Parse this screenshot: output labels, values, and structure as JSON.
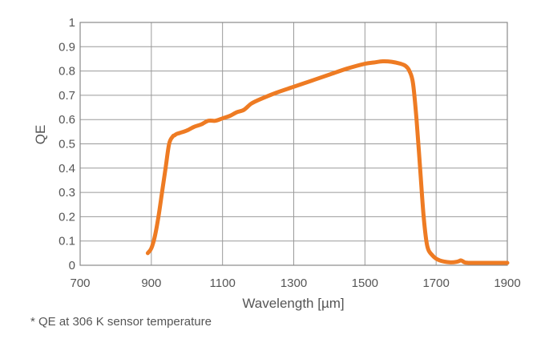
{
  "chart_data": {
    "type": "line",
    "xlabel": "Wavelength [µm]",
    "ylabel": "QE",
    "xlim": [
      700,
      1900
    ],
    "ylim": [
      0,
      1
    ],
    "x_ticks": [
      700,
      900,
      1100,
      1300,
      1500,
      1700,
      1900
    ],
    "y_ticks": [
      0,
      0.1,
      0.2,
      0.3,
      0.4,
      0.5,
      0.6,
      0.7,
      0.8,
      0.9,
      1
    ],
    "y_tick_labels": [
      "0",
      "0.1",
      "0.2",
      "0.3",
      "0.4",
      "0.5",
      "0.6",
      "0.7",
      "0.8",
      "0.9",
      "1"
    ],
    "grid": true,
    "series": [
      {
        "color": "#EE7B23",
        "x": [
          890,
          900,
          910,
          920,
          930,
          940,
          950,
          960,
          965,
          970,
          980,
          1000,
          1020,
          1040,
          1060,
          1080,
          1100,
          1120,
          1140,
          1160,
          1180,
          1200,
          1250,
          1300,
          1350,
          1400,
          1450,
          1500,
          1525,
          1550,
          1575,
          1600,
          1615,
          1625,
          1635,
          1645,
          1655,
          1665,
          1675,
          1690,
          1710,
          1740,
          1760,
          1770,
          1780,
          1790,
          1800,
          1850,
          1900
        ],
        "y": [
          0.05,
          0.07,
          0.12,
          0.2,
          0.3,
          0.4,
          0.5,
          0.53,
          0.535,
          0.54,
          0.545,
          0.555,
          0.57,
          0.58,
          0.595,
          0.595,
          0.605,
          0.615,
          0.63,
          0.64,
          0.665,
          0.68,
          0.71,
          0.735,
          0.76,
          0.785,
          0.81,
          0.83,
          0.835,
          0.84,
          0.838,
          0.83,
          0.82,
          0.8,
          0.75,
          0.6,
          0.4,
          0.2,
          0.08,
          0.04,
          0.02,
          0.012,
          0.015,
          0.02,
          0.012,
          0.01,
          0.01,
          0.01,
          0.01
        ]
      }
    ]
  },
  "footnote": "* QE at 306 K sensor temperature"
}
